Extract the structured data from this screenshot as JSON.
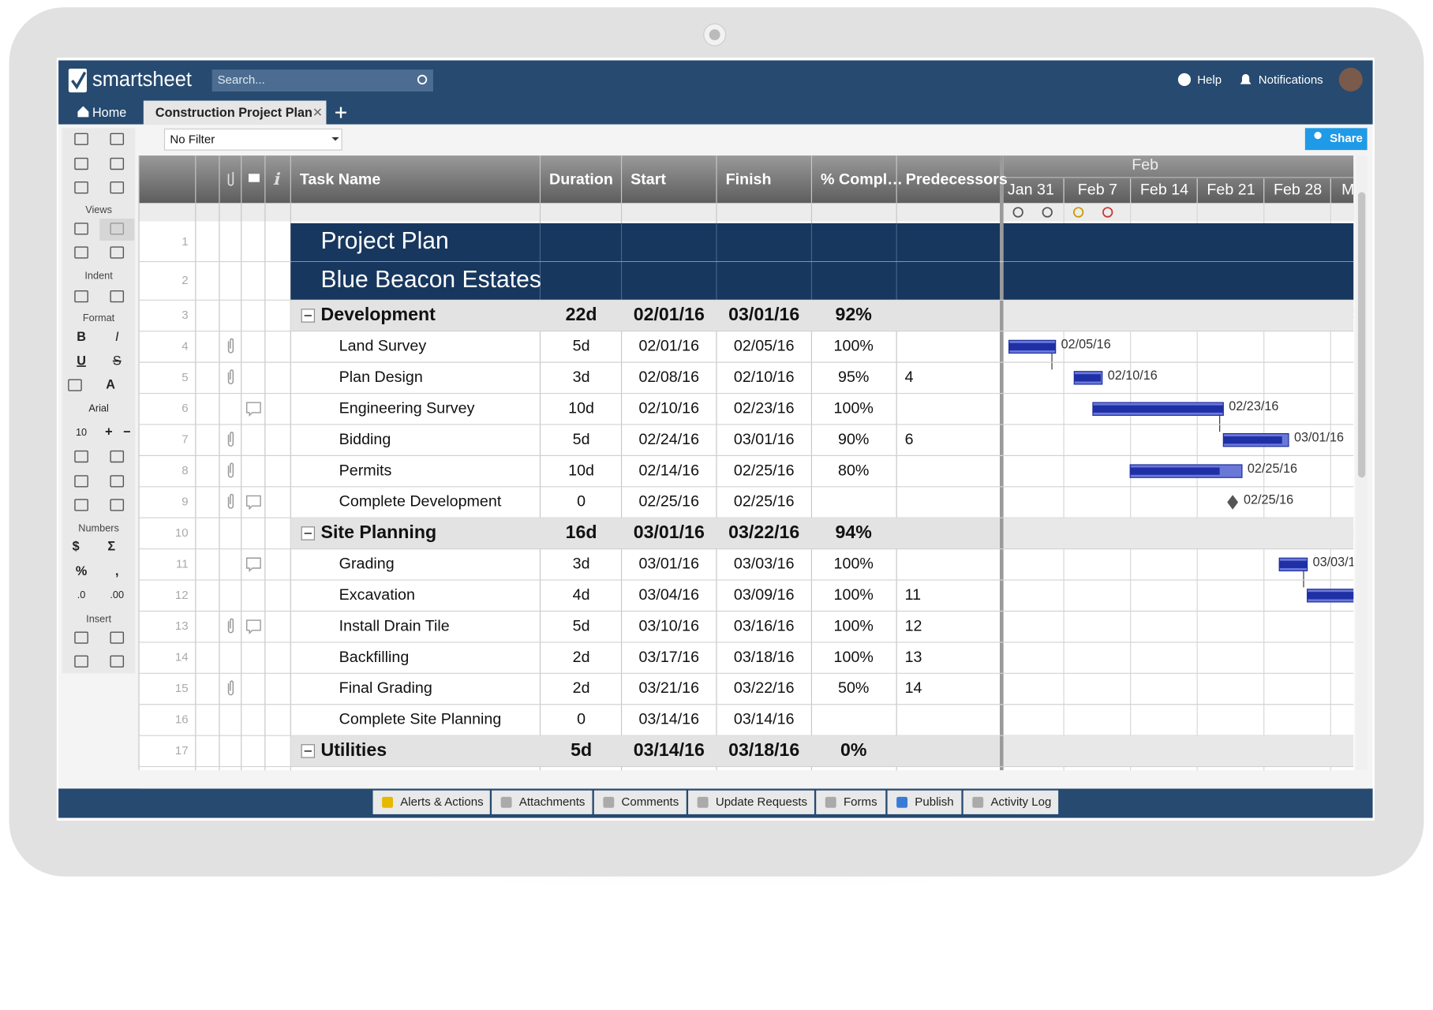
{
  "app": {
    "logo": "smartsheet",
    "search": "Search...",
    "help": "Help",
    "notifications": "Notifications"
  },
  "tabs": [
    "Home",
    "Construction Project Plan"
  ],
  "filter": "No Filter",
  "share": "Share",
  "toolbar": [
    "Views",
    "Indent",
    "Format",
    "B",
    "I",
    "U",
    "S",
    "A",
    "Arial",
    "10",
    "+",
    "−",
    "Numbers",
    "$",
    "Σ",
    "%",
    ",",
    ".0",
    ".00",
    "Insert"
  ],
  "columns": [
    "Task Name",
    "Duration",
    "Start",
    "Finish",
    "% Compl…",
    "Predecessors"
  ],
  "gantt": {
    "month": "Feb",
    "weeks": [
      "Jan 31",
      "Feb 7",
      "Feb 14",
      "Feb 21",
      "Feb 28",
      "M"
    ]
  },
  "rows": [
    {
      "num": "1",
      "kind": "title",
      "task": "Project Plan"
    },
    {
      "num": "2",
      "kind": "title",
      "task": "Blue Beacon Estates"
    },
    {
      "num": "3",
      "kind": "summary",
      "task": "Development",
      "duration": "22d",
      "start": "02/01/16",
      "finish": "03/01/16",
      "complete": "92%"
    },
    {
      "num": "4",
      "kind": "task",
      "task": "Land Survey",
      "duration": "5d",
      "start": "02/01/16",
      "finish": "02/05/16",
      "complete": "100%",
      "attachment": true
    },
    {
      "num": "5",
      "kind": "task",
      "task": "Plan Design",
      "duration": "3d",
      "start": "02/08/16",
      "finish": "02/10/16",
      "complete": "95%",
      "predecessors": "4",
      "attachment": true
    },
    {
      "num": "6",
      "kind": "task",
      "task": "Engineering Survey",
      "duration": "10d",
      "start": "02/10/16",
      "finish": "02/23/16",
      "complete": "100%",
      "comment": true
    },
    {
      "num": "7",
      "kind": "task",
      "task": "Bidding",
      "duration": "5d",
      "start": "02/24/16",
      "finish": "03/01/16",
      "complete": "90%",
      "predecessors": "6",
      "attachment": true
    },
    {
      "num": "8",
      "kind": "task",
      "task": "Permits",
      "duration": "10d",
      "start": "02/14/16",
      "finish": "02/25/16",
      "complete": "80%",
      "attachment": true
    },
    {
      "num": "9",
      "kind": "task",
      "task": "Complete Development",
      "duration": "0",
      "start": "02/25/16",
      "finish": "02/25/16",
      "attachment": true,
      "comment": true
    },
    {
      "num": "10",
      "kind": "summary",
      "task": "Site Planning",
      "duration": "16d",
      "start": "03/01/16",
      "finish": "03/22/16",
      "complete": "94%"
    },
    {
      "num": "11",
      "kind": "task",
      "task": "Grading",
      "duration": "3d",
      "start": "03/01/16",
      "finish": "03/03/16",
      "complete": "100%",
      "comment": true
    },
    {
      "num": "12",
      "kind": "task",
      "task": "Excavation",
      "duration": "4d",
      "start": "03/04/16",
      "finish": "03/09/16",
      "complete": "100%",
      "predecessors": "11"
    },
    {
      "num": "13",
      "kind": "task",
      "task": "Install Drain Tile",
      "duration": "5d",
      "start": "03/10/16",
      "finish": "03/16/16",
      "complete": "100%",
      "predecessors": "12",
      "attachment": true,
      "comment": true
    },
    {
      "num": "14",
      "kind": "task",
      "task": "Backfilling",
      "duration": "2d",
      "start": "03/17/16",
      "finish": "03/18/16",
      "complete": "100%",
      "predecessors": "13"
    },
    {
      "num": "15",
      "kind": "task",
      "task": "Final Grading",
      "duration": "2d",
      "start": "03/21/16",
      "finish": "03/22/16",
      "complete": "50%",
      "predecessors": "14",
      "attachment": true
    },
    {
      "num": "16",
      "kind": "task",
      "task": "Complete Site Planning",
      "duration": "0",
      "start": "03/14/16",
      "finish": "03/14/16"
    },
    {
      "num": "17",
      "kind": "summary",
      "task": "Utilities",
      "duration": "5d",
      "start": "03/14/16",
      "finish": "03/18/16",
      "complete": "0%"
    }
  ],
  "bottom_tabs": [
    "Alerts & Actions",
    "Attachments",
    "Comments",
    "Update Requests",
    "Forms",
    "Publish",
    "Activity Log"
  ]
}
